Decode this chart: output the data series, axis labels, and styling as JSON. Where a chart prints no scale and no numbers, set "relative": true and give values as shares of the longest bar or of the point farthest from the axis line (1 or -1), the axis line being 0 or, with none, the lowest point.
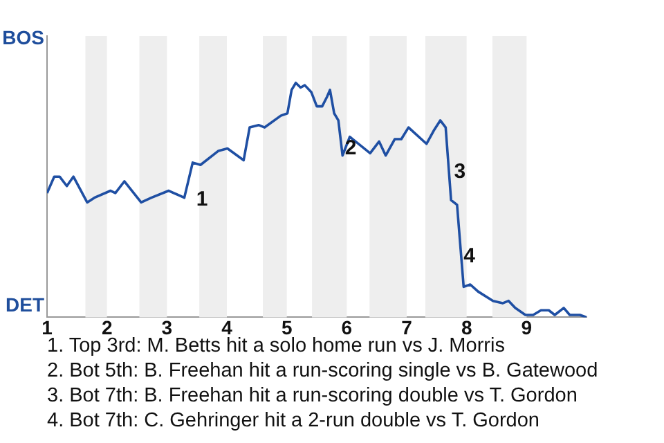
{
  "chart_data": {
    "type": "line",
    "relative": true,
    "x": [
      1.0,
      1.12,
      1.21,
      1.33,
      1.44,
      1.67,
      1.79,
      2.06,
      2.14,
      2.29,
      2.57,
      2.74,
      3.03,
      3.29,
      3.43,
      3.56,
      3.86,
      4.01,
      4.28,
      4.38,
      4.53,
      4.63,
      4.9,
      5.01,
      5.08,
      5.15,
      5.23,
      5.3,
      5.41,
      5.5,
      5.59,
      5.67,
      5.72,
      5.79,
      5.86,
      5.93,
      6.05,
      6.39,
      6.54,
      6.65,
      6.8,
      6.91,
      7.03,
      7.33,
      7.46,
      7.56,
      7.65,
      7.74,
      7.84,
      7.95,
      8.06,
      8.19,
      8.44,
      8.6,
      8.7,
      8.81,
      8.98,
      9.11,
      9.24,
      9.37,
      9.47,
      9.62,
      9.72,
      9.89,
      10.0
    ],
    "series": [
      {
        "color": "#1f4fa3",
        "values": [
          0.53,
          0.6,
          0.6,
          0.56,
          0.6,
          0.49,
          0.51,
          0.54,
          0.53,
          0.58,
          0.49,
          0.51,
          0.54,
          0.51,
          0.66,
          0.65,
          0.71,
          0.72,
          0.67,
          0.81,
          0.82,
          0.81,
          0.86,
          0.87,
          0.97,
          1,
          0.98,
          0.99,
          0.96,
          0.9,
          0.9,
          0.94,
          0.97,
          0.87,
          0.84,
          0.69,
          0.77,
          0.7,
          0.75,
          0.69,
          0.76,
          0.76,
          0.81,
          0.74,
          0.8,
          0.84,
          0.81,
          0.5,
          0.48,
          0.13,
          0.14,
          0.11,
          0.07,
          0.06,
          0.07,
          0.04,
          0.01,
          0.01,
          0.03,
          0.03,
          0.01,
          0.04,
          0.01,
          0.01,
          0
        ]
      }
    ],
    "xlim": [
      1,
      10
    ],
    "xticks": [
      1,
      2,
      3,
      4,
      5,
      6,
      7,
      8,
      9
    ],
    "legend": false,
    "marker": "none",
    "line_style": "solid",
    "bands": [
      {
        "axis": "x",
        "from": 1.64,
        "to": 2,
        "color": "#eeeeee"
      },
      {
        "axis": "x",
        "from": 2.54,
        "to": 3,
        "color": "#eeeeee"
      },
      {
        "axis": "x",
        "from": 3.54,
        "to": 4,
        "color": "#eeeeee"
      },
      {
        "axis": "x",
        "from": 4.6,
        "to": 5,
        "color": "#eeeeee"
      },
      {
        "axis": "x",
        "from": 5.42,
        "to": 6,
        "color": "#eeeeee"
      },
      {
        "axis": "x",
        "from": 6.38,
        "to": 7,
        "color": "#eeeeee"
      },
      {
        "axis": "x",
        "from": 7.31,
        "to": 8,
        "color": "#eeeeee"
      },
      {
        "axis": "x",
        "from": 8.43,
        "to": 9,
        "color": "#eeeeee"
      }
    ],
    "annotations": [
      {
        "text": "BOS"
      },
      {
        "text": "DET"
      },
      {
        "text": "1",
        "x": 3.49,
        "y": 0.5
      },
      {
        "text": "2",
        "x": 5.97,
        "y": 0.72
      },
      {
        "text": "3",
        "x": 7.79,
        "y": 0.62
      },
      {
        "text": "4",
        "x": 7.95,
        "y": 0.26
      },
      "1. Top 3rd: M. Betts hit a solo home run vs J. Morris",
      "2. Bot 5th: B. Freehan hit a run-scoring single vs B. Gatewood",
      "3. Bot 7th: B. Freehan hit a run-scoring double vs T. Gordon",
      "4. Bot 7th: C. Gehringer hit a 2-run double vs T. Gordon"
    ]
  }
}
